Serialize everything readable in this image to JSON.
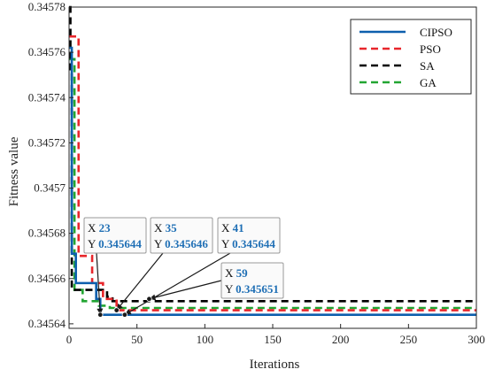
{
  "chart_data": {
    "type": "line",
    "title": "",
    "xlabel": "Iterations",
    "ylabel": "Fitness value",
    "xlim": [
      0,
      300
    ],
    "ylim": [
      0.345638,
      0.34578
    ],
    "xticks": [
      0,
      50,
      100,
      150,
      200,
      250,
      300
    ],
    "xtick_labels": [
      "0",
      "50",
      "100",
      "150",
      "200",
      "250",
      "300"
    ],
    "yticks": [
      0.34564,
      0.34566,
      0.34568,
      0.3457,
      0.34572,
      0.34574,
      0.34576,
      0.34578
    ],
    "ytick_labels": [
      "0.34564",
      "0.34566",
      "0.34568",
      "0.3457",
      "0.34572",
      "0.34574",
      "0.34576",
      "0.34578"
    ],
    "grid": true,
    "legend_position": "top-right",
    "series": [
      {
        "name": "CIPSO",
        "color": "#0d5fad",
        "dash": "solid",
        "points": [
          [
            0,
            0.345762
          ],
          [
            2,
            0.345762
          ],
          [
            2,
            0.345671
          ],
          [
            5,
            0.345671
          ],
          [
            5,
            0.345658
          ],
          [
            20,
            0.345658
          ],
          [
            20,
            0.345651
          ],
          [
            23,
            0.345651
          ],
          [
            23,
            0.345644
          ],
          [
            300,
            0.345644
          ]
        ]
      },
      {
        "name": "PSO",
        "color": "#e8262b",
        "dash": "dashed",
        "points": [
          [
            0,
            0.345767
          ],
          [
            7,
            0.345767
          ],
          [
            7,
            0.34567
          ],
          [
            17,
            0.34567
          ],
          [
            17,
            0.345658
          ],
          [
            25,
            0.345658
          ],
          [
            25,
            0.345651
          ],
          [
            35,
            0.345651
          ],
          [
            35,
            0.345646
          ],
          [
            300,
            0.345646
          ]
        ]
      },
      {
        "name": "SA",
        "color": "#000000",
        "dash": "dashed",
        "points": [
          [
            0,
            0.34578
          ],
          [
            1,
            0.34578
          ],
          [
            1,
            0.345752
          ],
          [
            2,
            0.345752
          ],
          [
            2,
            0.345655
          ],
          [
            28,
            0.345655
          ],
          [
            28,
            0.345652
          ],
          [
            32,
            0.345652
          ],
          [
            32,
            0.34565
          ],
          [
            300,
            0.34565
          ]
        ]
      },
      {
        "name": "GA",
        "color": "#22a532",
        "dash": "dashed",
        "points": [
          [
            0,
            0.345757
          ],
          [
            4,
            0.345757
          ],
          [
            4,
            0.345655
          ],
          [
            10,
            0.345655
          ],
          [
            10,
            0.34565
          ],
          [
            22,
            0.34565
          ],
          [
            22,
            0.345648
          ],
          [
            30,
            0.345648
          ],
          [
            30,
            0.345647
          ],
          [
            300,
            0.345647
          ]
        ]
      }
    ],
    "datatips": [
      {
        "x_label": "X",
        "x_value": "23",
        "y_label": "Y",
        "y_value": "0.345644",
        "point": [
          23,
          0.345644
        ]
      },
      {
        "x_label": "X",
        "x_value": "35",
        "y_label": "Y",
        "y_value": "0.345646",
        "point": [
          35,
          0.345646
        ]
      },
      {
        "x_label": "X",
        "x_value": "41",
        "y_label": "Y",
        "y_value": "0.345644",
        "point": [
          41,
          0.345644
        ]
      },
      {
        "x_label": "X",
        "x_value": "59",
        "y_label": "Y",
        "y_value": "0.345651",
        "point": [
          59,
          0.345651
        ]
      }
    ]
  }
}
